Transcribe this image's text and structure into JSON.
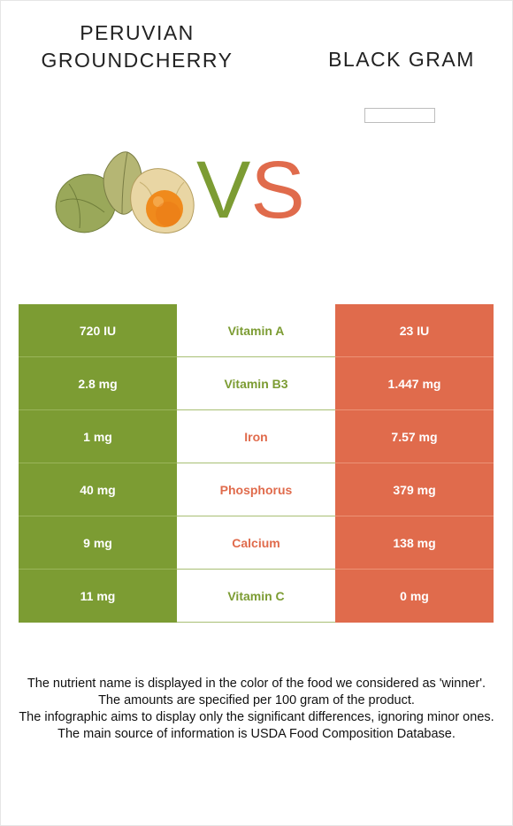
{
  "header": {
    "food_left": "PERUVIAN GROUNDCHERRY",
    "food_right": "BLACK GRAM",
    "vs_v": "V",
    "vs_s": "S"
  },
  "images": {
    "left_food": "peruvian-groundcherry-photo",
    "right_food": "black-gram-image-placeholder"
  },
  "colors": {
    "left_food": "#7c9c33",
    "right_food": "#e06b4c"
  },
  "comparison": [
    {
      "nutrient": "Vitamin A",
      "left": "720 IU",
      "right": "23 IU",
      "winner": "left"
    },
    {
      "nutrient": "Vitamin B3",
      "left": "2.8 mg",
      "right": "1.447 mg",
      "winner": "left"
    },
    {
      "nutrient": "Iron",
      "left": "1 mg",
      "right": "7.57 mg",
      "winner": "right"
    },
    {
      "nutrient": "Phosphorus",
      "left": "40 mg",
      "right": "379 mg",
      "winner": "right"
    },
    {
      "nutrient": "Calcium",
      "left": "9 mg",
      "right": "138 mg",
      "winner": "right"
    },
    {
      "nutrient": "Vitamin C",
      "left": "11 mg",
      "right": "0 mg",
      "winner": "left"
    }
  ],
  "footer": {
    "line1": "The nutrient name is displayed in the color of the food we considered as 'winner'.",
    "line2": "The amounts are specified per 100 gram of the product.",
    "line3": "The infographic aims to display only the significant differences, ignoring minor ones.",
    "line4": "The main source of information is USDA Food Composition Database."
  }
}
